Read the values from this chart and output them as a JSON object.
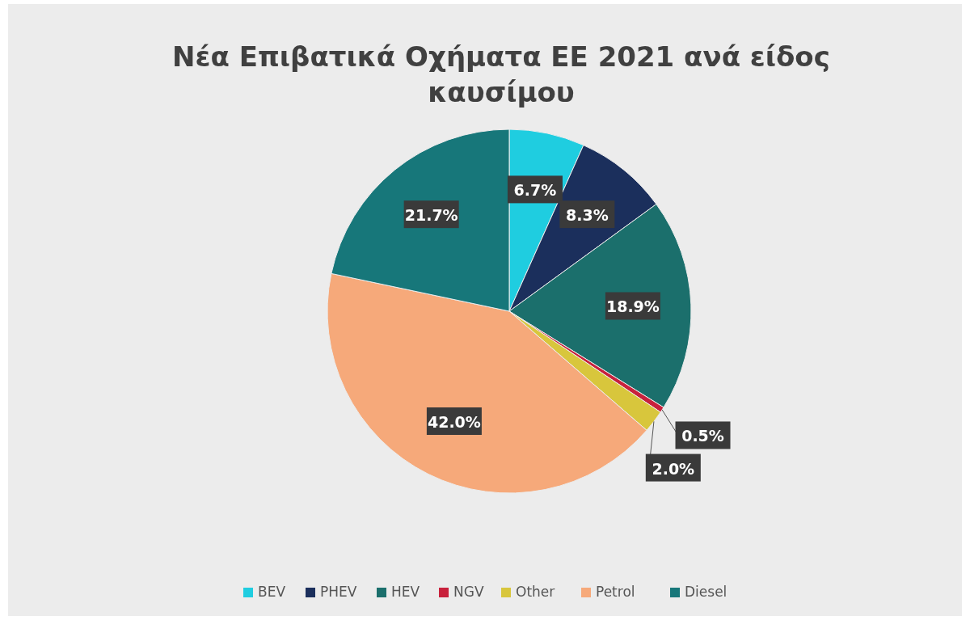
{
  "chart_data": {
    "type": "pie",
    "title": "Νέα Επιβατικά Οχήματα ΕΕ 2021 ανά είδος καυσίμου",
    "categories": [
      "BEV",
      "PHEV",
      "HEV",
      "NGV",
      "Other",
      "Petrol",
      "Diesel"
    ],
    "values": [
      6.7,
      8.3,
      18.9,
      0.5,
      2.0,
      42.0,
      21.7
    ],
    "colors": [
      "#1fcde0",
      "#1b2f5c",
      "#1b6f6c",
      "#c8213c",
      "#d8c63c",
      "#f6a97a",
      "#17777a"
    ],
    "value_labels": [
      "6.7%",
      "8.3%",
      "18.9%",
      "0.5%",
      "2.0%",
      "42.0%",
      "21.7%"
    ],
    "legend": "bottom"
  }
}
